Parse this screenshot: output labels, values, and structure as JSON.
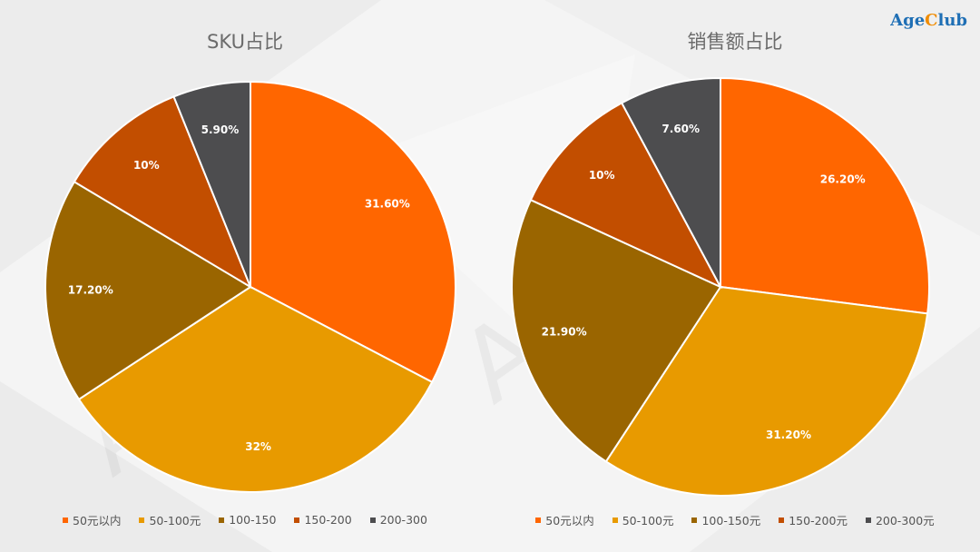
{
  "brand": {
    "logo_main": "Age",
    "logo_accent": "C",
    "logo_rest": "lub"
  },
  "colors": [
    "#ff6600",
    "#e89a00",
    "#9a6500",
    "#c24e00",
    "#4d4d4f"
  ],
  "chart_data": [
    {
      "type": "pie",
      "title": "SKU占比",
      "categories": [
        "50元以内",
        "50-100元",
        "100-150",
        "150-200",
        "200-300"
      ],
      "values": [
        31.6,
        32,
        17.2,
        10,
        5.9
      ],
      "data_labels": [
        "31.60%",
        "32%",
        "17.20%",
        "10%",
        "5.90%"
      ],
      "legend": "bottom"
    },
    {
      "type": "pie",
      "title": "销售额占比",
      "categories": [
        "50元以内",
        "50-100元",
        "100-150元",
        "150-200元",
        "200-300元"
      ],
      "values": [
        26.2,
        31.2,
        21.9,
        10,
        7.6
      ],
      "data_labels": [
        "26.20%",
        "31.20%",
        "21.90%",
        "10%",
        "7.60%"
      ],
      "legend": "bottom"
    }
  ]
}
